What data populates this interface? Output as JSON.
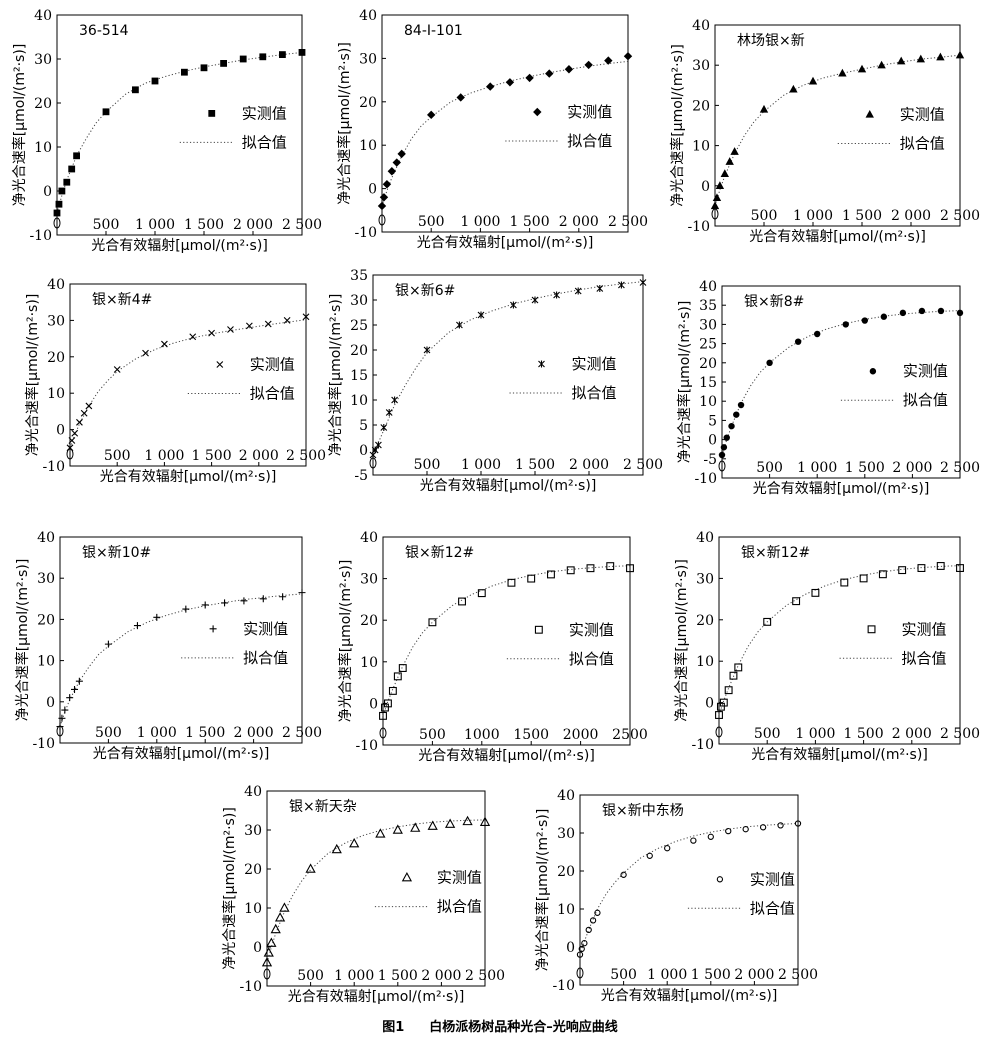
{
  "figure": {
    "number": "图1",
    "title": "白杨派杨树品种光合–光响应曲线"
  },
  "legend": {
    "measured": "实测值",
    "fitted": "拟合值"
  },
  "chart_data": [
    {
      "type": "scatter",
      "title": "36-514",
      "marker": "square-filled",
      "xlabel": "光合有效辐射[μmol/(m²·s)]",
      "ylabel": "净光合速率[μmol/(m²·s)]",
      "xlim": [
        0,
        2500
      ],
      "ylim": [
        -10,
        40
      ],
      "xticks": [
        "",
        "500",
        "1 000",
        "1 500",
        "2 000",
        "2 500"
      ],
      "yticks": [
        "-10",
        "0",
        "10",
        "20",
        "30",
        "40"
      ],
      "measured_x": [
        0,
        20,
        50,
        100,
        150,
        200,
        500,
        800,
        1000,
        1300,
        1500,
        1700,
        1900,
        2100,
        2300,
        2500
      ],
      "measured_y": [
        -5,
        -3,
        0,
        2,
        5,
        8,
        18,
        23,
        25,
        27,
        28,
        29,
        30,
        30.5,
        31,
        31.5
      ],
      "fitted_x": [
        0,
        50,
        100,
        200,
        300,
        400,
        500,
        700,
        900,
        1100,
        1300,
        1500,
        1700,
        1900,
        2100,
        2300,
        2500
      ],
      "fitted_y": [
        -5,
        -1,
        2.5,
        8,
        12,
        15.5,
        18,
        22,
        24.5,
        26,
        27.2,
        28.2,
        29,
        29.8,
        30.4,
        31,
        31.5
      ]
    },
    {
      "type": "scatter",
      "title": "84-I-101",
      "marker": "diamond-filled",
      "xlabel": "光合有效辐射[μmol/(m²·s)]",
      "ylabel": "净光合速率[μmol/(m²·s)]",
      "xlim": [
        0,
        2500
      ],
      "ylim": [
        -10,
        40
      ],
      "xticks": [
        "",
        "500",
        "1 000",
        "1 500",
        "2 000",
        "2 500"
      ],
      "yticks": [
        "-10",
        "0",
        "10",
        "20",
        "30",
        "40"
      ],
      "measured_x": [
        0,
        20,
        50,
        100,
        150,
        200,
        500,
        800,
        1100,
        1300,
        1500,
        1700,
        1900,
        2100,
        2300,
        2500
      ],
      "measured_y": [
        -4,
        -2,
        1,
        4,
        6,
        8,
        17,
        21,
        23.5,
        24.5,
        25.5,
        26.5,
        27.5,
        28.5,
        29.5,
        30.5
      ],
      "fitted_x": [
        0,
        50,
        100,
        200,
        300,
        400,
        500,
        700,
        900,
        1100,
        1300,
        1500,
        1700,
        1900,
        2100,
        2300,
        2500
      ],
      "fitted_y": [
        -4,
        -0.5,
        2.5,
        7.5,
        11.5,
        14.5,
        16.5,
        20,
        22,
        23.5,
        24.8,
        25.8,
        26.7,
        27.5,
        28.2,
        28.8,
        29.3
      ]
    },
    {
      "type": "scatter",
      "title": "林场银×新",
      "marker": "triangle-filled",
      "xlabel": "光合有效辐射[μmol/(m²·s)]",
      "ylabel": "净光合速率[μmol/(m²·s)]",
      "xlim": [
        0,
        2500
      ],
      "ylim": [
        -10,
        40
      ],
      "xticks": [
        "",
        "500",
        "1 000",
        "1 500",
        "2 000",
        "2 500"
      ],
      "yticks": [
        "-10",
        "0",
        "10",
        "20",
        "30",
        "40"
      ],
      "measured_x": [
        0,
        20,
        50,
        100,
        150,
        200,
        500,
        800,
        1000,
        1300,
        1500,
        1700,
        1900,
        2100,
        2300,
        2500
      ],
      "measured_y": [
        -5,
        -3,
        0,
        3,
        6,
        8.5,
        19,
        24,
        26,
        28,
        29,
        30,
        31,
        31.5,
        32,
        32.5
      ],
      "fitted_x": [
        0,
        50,
        100,
        200,
        300,
        400,
        500,
        700,
        900,
        1100,
        1300,
        1500,
        1700,
        1900,
        2100,
        2300,
        2500
      ],
      "fitted_y": [
        -5,
        -1,
        2.5,
        8,
        12.5,
        16,
        18.5,
        22.5,
        25,
        26.8,
        28,
        29,
        30,
        30.8,
        31.5,
        32,
        32.5
      ]
    },
    {
      "type": "scatter",
      "title": "银×新4#",
      "marker": "x",
      "xlabel": "光合有效辐射[μmol/(m²·s)]",
      "ylabel": "净光合速率[μmol/(m²·s)]",
      "xlim": [
        0,
        2500
      ],
      "ylim": [
        -10,
        40
      ],
      "xticks": [
        "",
        "500",
        "1 000",
        "1 500",
        "2 000",
        "2 500"
      ],
      "yticks": [
        "-10",
        "0",
        "10",
        "20",
        "30",
        "40"
      ],
      "measured_x": [
        0,
        20,
        50,
        100,
        150,
        200,
        500,
        800,
        1000,
        1300,
        1500,
        1700,
        1900,
        2100,
        2300,
        2500
      ],
      "measured_y": [
        -5,
        -3,
        -1,
        2,
        4.5,
        6.5,
        16.5,
        21,
        23.5,
        25.5,
        26.5,
        27.5,
        28.5,
        29,
        30,
        31
      ],
      "fitted_x": [
        0,
        50,
        100,
        200,
        300,
        400,
        500,
        700,
        900,
        1100,
        1300,
        1500,
        1700,
        1900,
        2100,
        2300,
        2500
      ],
      "fitted_y": [
        -5,
        -1.5,
        1.5,
        6.5,
        10.5,
        13.5,
        16,
        19.5,
        22,
        23.8,
        25.2,
        26.3,
        27.2,
        28,
        28.8,
        29.5,
        30.2
      ]
    },
    {
      "type": "scatter",
      "title": "银×新6#",
      "marker": "asterisk",
      "xlabel": "光合有效辐射[μmol/(m²·s)]",
      "ylabel": "净光合速率[μmol/(m²·s)]",
      "xlim": [
        0,
        2500
      ],
      "ylim": [
        -5,
        35
      ],
      "xticks": [
        "",
        "500",
        "1 000",
        "1 500",
        "2 000",
        "2 500"
      ],
      "yticks": [
        "-5",
        "0",
        "5",
        "10",
        "15",
        "20",
        "25",
        "30",
        "35"
      ],
      "measured_x": [
        0,
        20,
        50,
        100,
        150,
        200,
        500,
        800,
        1000,
        1300,
        1500,
        1700,
        1900,
        2100,
        2300,
        2500
      ],
      "measured_y": [
        -1,
        0,
        1,
        4.5,
        7.5,
        10,
        20,
        25,
        27,
        29,
        30,
        31,
        31.8,
        32.3,
        33,
        33.5
      ],
      "fitted_x": [
        0,
        50,
        100,
        200,
        300,
        400,
        500,
        700,
        900,
        1100,
        1300,
        1500,
        1700,
        1900,
        2100,
        2300,
        2500
      ],
      "fitted_y": [
        -1,
        1.5,
        4,
        9,
        13,
        16.5,
        19.5,
        23.5,
        26,
        27.8,
        29.2,
        30.3,
        31.2,
        32,
        32.7,
        33.2,
        33.7
      ]
    },
    {
      "type": "scatter",
      "title": "银×新8#",
      "marker": "circle-filled",
      "xlabel": "光合有效辐射[μmol/(m²·s)]",
      "ylabel": "净光合速率[μmol/(m²·s)]",
      "xlim": [
        0,
        2500
      ],
      "ylim": [
        -10,
        40
      ],
      "xticks": [
        "",
        "500",
        "1 000",
        "1 500",
        "2 000",
        "2 500"
      ],
      "yticks": [
        "-10",
        "-5",
        "0",
        "5",
        "10",
        "15",
        "20",
        "25",
        "30",
        "35",
        "40"
      ],
      "measured_x": [
        0,
        20,
        50,
        100,
        150,
        200,
        500,
        800,
        1000,
        1300,
        1500,
        1700,
        1900,
        2100,
        2300,
        2500
      ],
      "measured_y": [
        -4,
        -2,
        0.5,
        3.5,
        6.5,
        9,
        20,
        25.5,
        27.5,
        30,
        31,
        32,
        33,
        33.5,
        33.5,
        33
      ],
      "fitted_x": [
        0,
        50,
        100,
        200,
        300,
        400,
        500,
        700,
        900,
        1100,
        1300,
        1500,
        1700,
        1900,
        2100,
        2300,
        2500
      ],
      "fitted_y": [
        -4,
        0,
        3.5,
        9.5,
        14,
        17.5,
        20,
        24,
        26.8,
        28.8,
        30.2,
        31.3,
        32.1,
        32.7,
        33.1,
        33.4,
        33.6
      ]
    },
    {
      "type": "scatter",
      "title": "银×新10#",
      "marker": "plus",
      "xlabel": "光合有效辐射[μmol/(m²·s)]",
      "ylabel": "净光合速率[μmol/(m²·s)]",
      "xlim": [
        0,
        2500
      ],
      "ylim": [
        -10,
        40
      ],
      "xticks": [
        "",
        "500",
        "1 000",
        "1 500",
        "2 000",
        "2 500"
      ],
      "yticks": [
        "-10",
        "0",
        "10",
        "20",
        "30",
        "40"
      ],
      "measured_x": [
        0,
        20,
        50,
        100,
        150,
        200,
        500,
        800,
        1000,
        1300,
        1500,
        1700,
        1900,
        2100,
        2300,
        2500
      ],
      "measured_y": [
        -6,
        -4,
        -2,
        1,
        3,
        5,
        14,
        18.5,
        20.5,
        22.5,
        23.5,
        24,
        24.5,
        25,
        25.5,
        26.5
      ],
      "fitted_x": [
        0,
        50,
        100,
        200,
        300,
        400,
        500,
        700,
        900,
        1100,
        1300,
        1500,
        1700,
        1900,
        2100,
        2300,
        2500
      ],
      "fitted_y": [
        -6,
        -2.5,
        0.5,
        5,
        8.5,
        11.5,
        13.5,
        17,
        19.3,
        21,
        22.3,
        23.3,
        24.1,
        24.8,
        25.3,
        25.8,
        26.2
      ]
    },
    {
      "type": "scatter",
      "title": "银×新12#",
      "marker": "square-open",
      "xlabel": "光合有效辐射[μmol/(m²·s)]",
      "ylabel": "净光合速率[μmol/(m²·s)]",
      "xlim": [
        0,
        2500
      ],
      "ylim": [
        -10,
        40
      ],
      "xticks": [
        "",
        "500",
        "1000",
        "1500",
        "2000",
        "2500"
      ],
      "yticks": [
        "-10",
        "0",
        "10",
        "20",
        "30",
        "40"
      ],
      "measured_x": [
        0,
        20,
        50,
        100,
        150,
        200,
        500,
        800,
        1000,
        1300,
        1500,
        1700,
        1900,
        2100,
        2300,
        2500
      ],
      "measured_y": [
        -3,
        -1,
        0,
        3,
        6.5,
        8.5,
        19.5,
        24.5,
        26.5,
        29,
        30,
        31,
        32,
        32.5,
        33,
        32.5
      ],
      "fitted_x": [
        0,
        50,
        100,
        200,
        300,
        400,
        500,
        700,
        900,
        1100,
        1300,
        1500,
        1700,
        1900,
        2100,
        2300,
        2500
      ],
      "fitted_y": [
        -3,
        0.5,
        3.5,
        9,
        13.5,
        17,
        19.5,
        23.5,
        26.2,
        28.2,
        29.7,
        30.8,
        31.6,
        32.2,
        32.6,
        32.9,
        33.1
      ]
    },
    {
      "type": "scatter",
      "title": "银×新12#",
      "marker": "square-open",
      "xlabel": "光合有效辐射[μmol/(m²·s)]",
      "ylabel": "净光合速率[μmol/(m²·s)]",
      "xlim": [
        0,
        2500
      ],
      "ylim": [
        -10,
        40
      ],
      "xticks": [
        "",
        "500",
        "1 000",
        "1 500",
        "2 000",
        "2 500"
      ],
      "yticks": [
        "-10",
        "0",
        "10",
        "20",
        "30",
        "40"
      ],
      "measured_x": [
        0,
        20,
        50,
        100,
        150,
        200,
        500,
        800,
        1000,
        1300,
        1500,
        1700,
        1900,
        2100,
        2300,
        2500
      ],
      "measured_y": [
        -3,
        -1,
        0,
        3,
        6.5,
        8.5,
        19.5,
        24.5,
        26.5,
        29,
        30,
        31,
        32,
        32.5,
        33,
        32.5
      ],
      "fitted_x": [
        0,
        50,
        100,
        200,
        300,
        400,
        500,
        700,
        900,
        1100,
        1300,
        1500,
        1700,
        1900,
        2100,
        2300,
        2500
      ],
      "fitted_y": [
        -3,
        0.5,
        3.5,
        9,
        13.5,
        17,
        19.5,
        23.5,
        26.2,
        28.2,
        29.7,
        30.8,
        31.6,
        32.2,
        32.6,
        32.9,
        33.1
      ]
    },
    {
      "type": "scatter",
      "title": "银×新天杂",
      "marker": "triangle-open",
      "xlabel": "光合有效辐射[μmol/(m²·s)]",
      "ylabel": "净光合速率[μmol/(m²·s)]",
      "xlim": [
        0,
        2500
      ],
      "ylim": [
        -10,
        40
      ],
      "xticks": [
        "",
        "500",
        "1 000",
        "1 500",
        "2 000",
        "2 500"
      ],
      "yticks": [
        "-10",
        "0",
        "10",
        "20",
        "30",
        "40"
      ],
      "measured_x": [
        0,
        20,
        50,
        100,
        150,
        200,
        500,
        800,
        1000,
        1300,
        1500,
        1700,
        1900,
        2100,
        2300,
        2500
      ],
      "measured_y": [
        -4,
        -1.5,
        1,
        4.5,
        7.5,
        10,
        20,
        25,
        26.5,
        29,
        30,
        30.5,
        31,
        31.5,
        32.2,
        32
      ],
      "fitted_x": [
        0,
        50,
        100,
        200,
        300,
        400,
        500,
        700,
        900,
        1100,
        1300,
        1500,
        1700,
        1900,
        2100,
        2300,
        2500
      ],
      "fitted_y": [
        -4,
        0,
        3.5,
        9,
        13.5,
        17,
        19.8,
        24,
        26.7,
        28.6,
        29.9,
        30.8,
        31.5,
        32,
        32.3,
        32.5,
        32.6
      ]
    },
    {
      "type": "scatter",
      "title": "银×新中东杨",
      "marker": "circle-open",
      "xlabel": "光合有效辐射[μmol/(m²·s)]",
      "ylabel": "净光合速率[μmol/(m²·s)]",
      "xlim": [
        0,
        2500
      ],
      "ylim": [
        -10,
        40
      ],
      "xticks": [
        "",
        "500",
        "1 000",
        "1 500",
        "2 000",
        "2 500"
      ],
      "yticks": [
        "-10",
        "0",
        "10",
        "20",
        "30",
        "40"
      ],
      "measured_x": [
        0,
        20,
        50,
        100,
        150,
        200,
        500,
        800,
        1000,
        1300,
        1500,
        1700,
        1900,
        2100,
        2300,
        2500
      ],
      "measured_y": [
        -2,
        -0.5,
        1,
        4.5,
        7,
        9,
        19,
        24,
        26,
        28,
        29,
        30.5,
        31,
        31.5,
        32,
        32.5
      ],
      "fitted_x": [
        0,
        50,
        100,
        200,
        300,
        400,
        500,
        700,
        900,
        1100,
        1300,
        1500,
        1700,
        1900,
        2100,
        2300,
        2500
      ],
      "fitted_y": [
        -2,
        1.5,
        4.5,
        10,
        14,
        17,
        19.5,
        23.5,
        26,
        27.8,
        29.2,
        30.2,
        31,
        31.6,
        32,
        32.3,
        32.5
      ]
    }
  ]
}
